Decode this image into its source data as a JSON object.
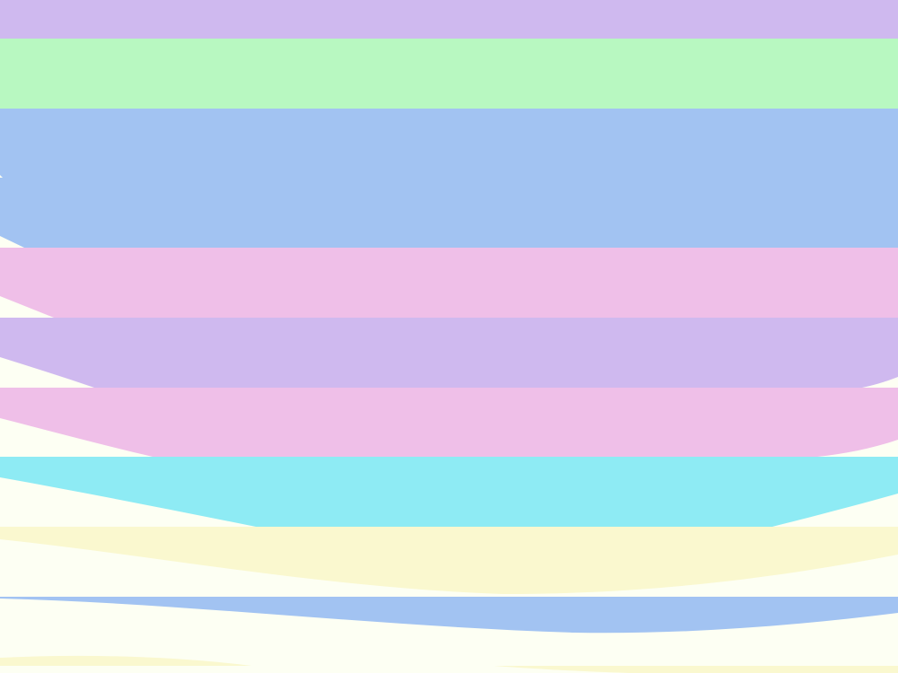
{
  "background": "#fdfff3",
  "bands": [
    {
      "name": "purple",
      "color": "#cfb9ef"
    },
    {
      "name": "green",
      "color": "#b8f8c1"
    },
    {
      "name": "blue",
      "color": "#a2c3f2"
    },
    {
      "name": "blue",
      "color": "#a2c3f2"
    },
    {
      "name": "pink",
      "color": "#efbfe8"
    },
    {
      "name": "purple",
      "color": "#cfb9ef"
    },
    {
      "name": "pink",
      "color": "#efbfe8"
    },
    {
      "name": "cyan",
      "color": "#8eebf4"
    },
    {
      "name": "yellow",
      "color": "#faf8cf"
    },
    {
      "name": "blue",
      "color": "#a2c3f2"
    },
    {
      "name": "yellow",
      "color": "#faf8cf"
    },
    {
      "name": "yellow",
      "color": "#faf8cf"
    }
  ]
}
